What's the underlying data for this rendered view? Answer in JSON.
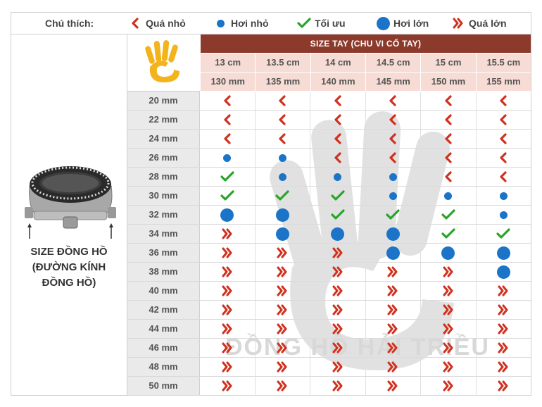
{
  "legend": {
    "title": "Chú thích:",
    "items": [
      {
        "label": "Quá nhỏ",
        "icon": "chevron-left-icon"
      },
      {
        "label": "Hơi nhỏ",
        "icon": "small-dot-icon"
      },
      {
        "label": "Tối ưu",
        "icon": "check-icon"
      },
      {
        "label": "Hơi lớn",
        "icon": "large-dot-icon"
      },
      {
        "label": "Quá lớn",
        "icon": "double-chevron-right-icon"
      }
    ]
  },
  "header": {
    "title": "SIZE TAY  (CHU VI CỔ TAY)",
    "cm": [
      "13 cm",
      "13.5 cm",
      "14 cm",
      "14.5 cm",
      "15 cm",
      "15.5 cm"
    ],
    "mm": [
      "130 mm",
      "135 mm",
      "140 mm",
      "145 mm",
      "150 mm",
      "155 mm"
    ]
  },
  "side_label": {
    "line1": "SIZE ĐỒNG HỒ",
    "line2": "(ĐƯỜNG KÍNH",
    "line3": "ĐỒNG HỒ)"
  },
  "watermark": "ĐỒNG HỒ HẢI TRIỀU",
  "rows": [
    {
      "size": "20 mm",
      "v": [
        "L",
        "L",
        "L",
        "L",
        "L",
        "L"
      ]
    },
    {
      "size": "22 mm",
      "v": [
        "L",
        "L",
        "L",
        "L",
        "L",
        "L"
      ]
    },
    {
      "size": "24 mm",
      "v": [
        "L",
        "L",
        "L",
        "L",
        "L",
        "L"
      ]
    },
    {
      "size": "26 mm",
      "v": [
        "S",
        "S",
        "L",
        "L",
        "L",
        "L"
      ]
    },
    {
      "size": "28 mm",
      "v": [
        "C",
        "S",
        "S",
        "S",
        "L",
        "L"
      ]
    },
    {
      "size": "30 mm",
      "v": [
        "C",
        "C",
        "C",
        "S",
        "S",
        "S"
      ]
    },
    {
      "size": "32 mm",
      "v": [
        "B",
        "B",
        "C",
        "C",
        "C",
        "S"
      ]
    },
    {
      "size": "34 mm",
      "v": [
        "R",
        "B",
        "B",
        "B",
        "C",
        "C"
      ]
    },
    {
      "size": "36 mm",
      "v": [
        "R",
        "R",
        "R",
        "B",
        "B",
        "B"
      ]
    },
    {
      "size": "38 mm",
      "v": [
        "R",
        "R",
        "R",
        "R",
        "R",
        "B"
      ]
    },
    {
      "size": "40 mm",
      "v": [
        "R",
        "R",
        "R",
        "R",
        "R",
        "R"
      ]
    },
    {
      "size": "42 mm",
      "v": [
        "R",
        "R",
        "R",
        "R",
        "R",
        "R"
      ]
    },
    {
      "size": "44 mm",
      "v": [
        "R",
        "R",
        "R",
        "R",
        "R",
        "R"
      ]
    },
    {
      "size": "46 mm",
      "v": [
        "R",
        "R",
        "R",
        "R",
        "R",
        "R"
      ]
    },
    {
      "size": "48 mm",
      "v": [
        "R",
        "R",
        "R",
        "R",
        "R",
        "R"
      ]
    },
    {
      "size": "50 mm",
      "v": [
        "R",
        "R",
        "R",
        "R",
        "R",
        "R"
      ]
    }
  ],
  "colors": {
    "red": "#d0311f",
    "green": "#2aa52a",
    "blue": "#1b74c8",
    "header": "#8b3a2b",
    "subheader": "#f7dcd5",
    "hand": "#f2b31b"
  }
}
